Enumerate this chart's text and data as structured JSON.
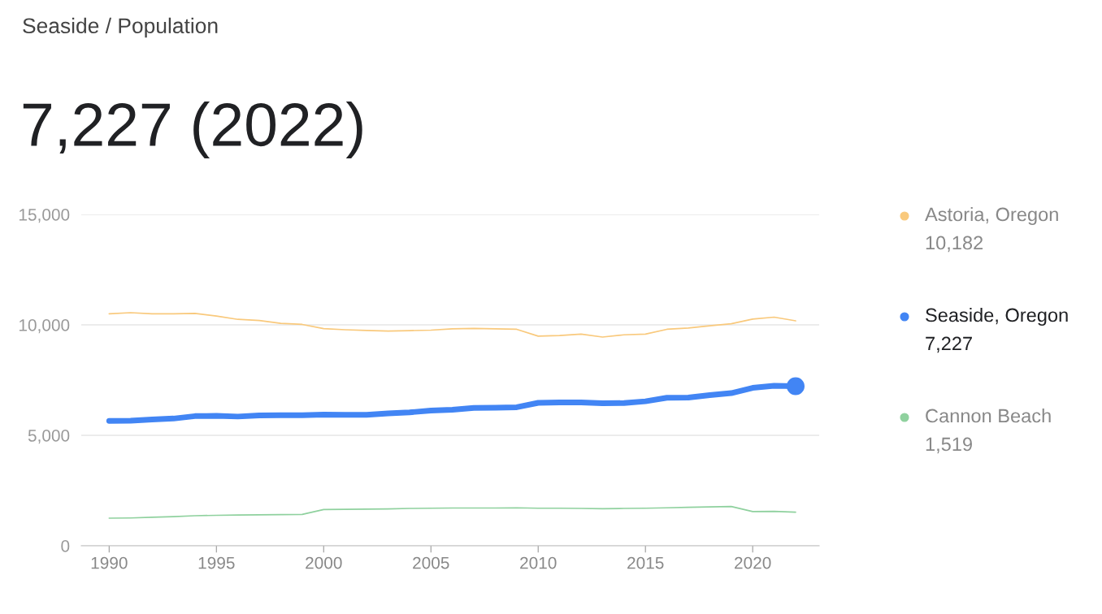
{
  "chart_data": {
    "type": "line",
    "title": "Seaside / Population",
    "subtitle": "7,227 (2022)",
    "x": [
      1990,
      1991,
      1992,
      1993,
      1994,
      1995,
      1996,
      1997,
      1998,
      1999,
      2000,
      2001,
      2002,
      2003,
      2004,
      2005,
      2006,
      2007,
      2008,
      2009,
      2010,
      2011,
      2012,
      2013,
      2014,
      2015,
      2016,
      2017,
      2018,
      2019,
      2020,
      2021,
      2022
    ],
    "series": [
      {
        "name": "Astoria, Oregon",
        "color": "#f9c97c",
        "values": [
          10500,
          10550,
          10500,
          10500,
          10520,
          10400,
          10250,
          10200,
          10070,
          10020,
          9830,
          9780,
          9750,
          9720,
          9740,
          9760,
          9820,
          9840,
          9820,
          9800,
          9490,
          9520,
          9580,
          9450,
          9550,
          9580,
          9800,
          9860,
          9960,
          10050,
          10260,
          10350,
          10182
        ]
      },
      {
        "name": "Seaside, Oregon",
        "color": "#4285f4",
        "values": [
          5650,
          5660,
          5720,
          5760,
          5870,
          5880,
          5850,
          5900,
          5910,
          5910,
          5940,
          5930,
          5930,
          5990,
          6040,
          6120,
          6160,
          6240,
          6250,
          6270,
          6470,
          6490,
          6490,
          6450,
          6460,
          6540,
          6700,
          6710,
          6820,
          6910,
          7150,
          7240,
          7227
        ]
      },
      {
        "name": "Cannon Beach",
        "color": "#8fd19e",
        "values": [
          1250,
          1260,
          1290,
          1320,
          1360,
          1380,
          1390,
          1400,
          1410,
          1420,
          1640,
          1650,
          1660,
          1670,
          1690,
          1700,
          1710,
          1710,
          1710,
          1720,
          1700,
          1700,
          1690,
          1680,
          1690,
          1700,
          1720,
          1740,
          1760,
          1780,
          1550,
          1560,
          1519
        ]
      },
      {
        "type": "scatter",
        "color": "#4285f4",
        "x": [
          2022
        ],
        "values": [
          7227
        ]
      }
    ],
    "annotations": [
      "10,182",
      "7,227",
      "1,519"
    ],
    "xlim": [
      1988.7,
      2023.1
    ],
    "xticks": [
      1990,
      1995,
      2000,
      2005,
      2010,
      2015,
      2020
    ],
    "ylim": [
      0,
      15000
    ],
    "yticks": [
      0,
      {
        "value": 5000,
        "label": "5,000"
      },
      {
        "value": 10000,
        "label": "10,000"
      },
      {
        "value": 15000,
        "label": "15,000"
      }
    ],
    "grid": "y",
    "legend": "right"
  }
}
